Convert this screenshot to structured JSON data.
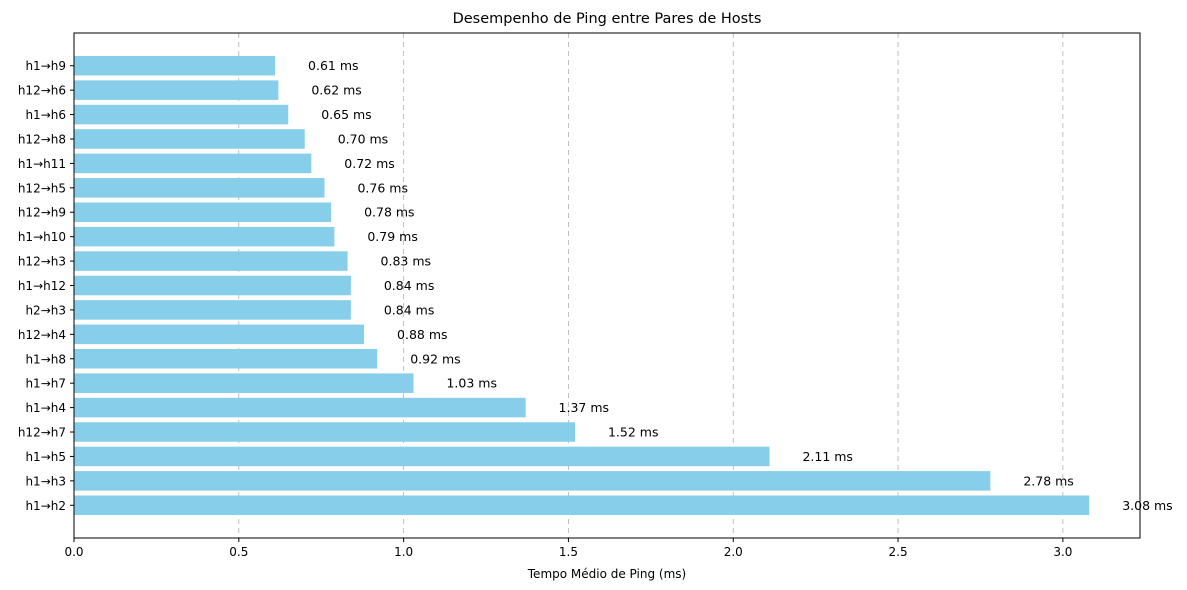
{
  "chart_data": {
    "type": "bar",
    "orientation": "horizontal",
    "title": "Desempenho de Ping entre Pares de Hosts",
    "xlabel": "Tempo Médio de Ping (ms)",
    "ylabel": "",
    "xlim": [
      0,
      3.234
    ],
    "xticks": [
      0.0,
      0.5,
      1.0,
      1.5,
      2.0,
      2.5,
      3.0
    ],
    "xtick_labels": [
      "0.0",
      "0.5",
      "1.0",
      "1.5",
      "2.0",
      "2.5",
      "3.0"
    ],
    "grid": "x, dashed",
    "bar_color": "#87CEEB",
    "value_suffix": " ms",
    "categories": [
      "h1→h2",
      "h1→h3",
      "h1→h5",
      "h12→h7",
      "h1→h4",
      "h1→h7",
      "h1→h8",
      "h12→h4",
      "h2→h3",
      "h1→h12",
      "h12→h3",
      "h1→h10",
      "h12→h9",
      "h12→h5",
      "h1→h11",
      "h12→h8",
      "h1→h6",
      "h12→h6",
      "h1→h9"
    ],
    "values": [
      3.08,
      2.78,
      2.11,
      1.52,
      1.37,
      1.03,
      0.92,
      0.88,
      0.84,
      0.84,
      0.83,
      0.79,
      0.78,
      0.76,
      0.72,
      0.7,
      0.65,
      0.62,
      0.61
    ],
    "data_labels": [
      "3.08 ms",
      "2.78 ms",
      "2.11 ms",
      "1.52 ms",
      "1.37 ms",
      "1.03 ms",
      "0.92 ms",
      "0.88 ms",
      "0.84 ms",
      "0.84 ms",
      "0.83 ms",
      "0.79 ms",
      "0.78 ms",
      "0.76 ms",
      "0.72 ms",
      "0.70 ms",
      "0.65 ms",
      "0.62 ms",
      "0.61 ms"
    ]
  }
}
